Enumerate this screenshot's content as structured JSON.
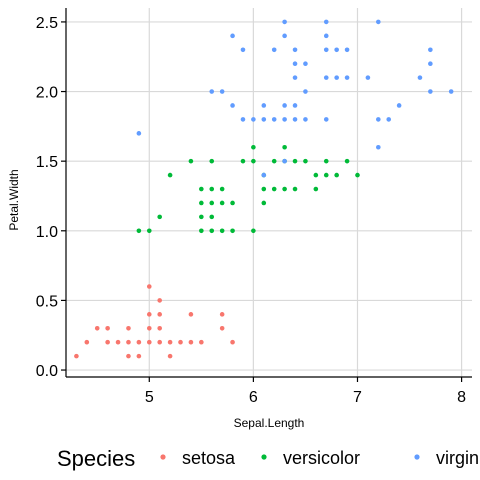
{
  "chart_data": {
    "type": "scatter",
    "xlabel": "Sepal.Length",
    "ylabel": "Petal.Width",
    "xlim": [
      4.2,
      8.1
    ],
    "ylim": [
      -0.05,
      2.6
    ],
    "x_ticks": [
      5,
      6,
      7,
      8
    ],
    "y_ticks": [
      0.0,
      0.5,
      1.0,
      1.5,
      2.0,
      2.5
    ],
    "x_tick_labels": [
      "5",
      "6",
      "7",
      "8"
    ],
    "y_tick_labels": [
      "0.0",
      "0.5",
      "1.0",
      "1.5",
      "2.0",
      "2.5"
    ],
    "grid": true,
    "legend": {
      "title": "Species",
      "position": "bottom"
    },
    "series": [
      {
        "name": "setosa",
        "color": "#F8766D",
        "points": [
          [
            4.3,
            0.1
          ],
          [
            4.4,
            0.2
          ],
          [
            4.5,
            0.3
          ],
          [
            4.6,
            0.2
          ],
          [
            4.6,
            0.3
          ],
          [
            4.7,
            0.2
          ],
          [
            4.8,
            0.1
          ],
          [
            4.8,
            0.2
          ],
          [
            4.8,
            0.3
          ],
          [
            4.9,
            0.1
          ],
          [
            4.9,
            0.2
          ],
          [
            5.0,
            0.2
          ],
          [
            5.0,
            0.3
          ],
          [
            5.0,
            0.4
          ],
          [
            5.0,
            0.6
          ],
          [
            5.1,
            0.2
          ],
          [
            5.1,
            0.3
          ],
          [
            5.1,
            0.4
          ],
          [
            5.1,
            0.5
          ],
          [
            5.2,
            0.1
          ],
          [
            5.2,
            0.2
          ],
          [
            5.3,
            0.2
          ],
          [
            5.4,
            0.2
          ],
          [
            5.4,
            0.4
          ],
          [
            5.5,
            0.2
          ],
          [
            5.7,
            0.3
          ],
          [
            5.7,
            0.4
          ],
          [
            5.8,
            0.2
          ]
        ]
      },
      {
        "name": "versicolor",
        "color": "#00BA38",
        "points": [
          [
            4.9,
            1.0
          ],
          [
            5.0,
            1.0
          ],
          [
            5.1,
            1.1
          ],
          [
            5.2,
            1.4
          ],
          [
            5.4,
            1.5
          ],
          [
            5.5,
            1.0
          ],
          [
            5.5,
            1.1
          ],
          [
            5.5,
            1.2
          ],
          [
            5.5,
            1.3
          ],
          [
            5.6,
            1.0
          ],
          [
            5.6,
            1.1
          ],
          [
            5.6,
            1.2
          ],
          [
            5.6,
            1.3
          ],
          [
            5.6,
            1.5
          ],
          [
            5.7,
            1.0
          ],
          [
            5.7,
            1.2
          ],
          [
            5.7,
            1.3
          ],
          [
            5.8,
            1.0
          ],
          [
            5.8,
            1.2
          ],
          [
            5.9,
            1.5
          ],
          [
            6.0,
            1.0
          ],
          [
            6.0,
            1.5
          ],
          [
            6.0,
            1.6
          ],
          [
            6.1,
            1.2
          ],
          [
            6.1,
            1.3
          ],
          [
            6.1,
            1.4
          ],
          [
            6.2,
            1.3
          ],
          [
            6.2,
            1.5
          ],
          [
            6.3,
            1.3
          ],
          [
            6.3,
            1.5
          ],
          [
            6.3,
            1.6
          ],
          [
            6.4,
            1.3
          ],
          [
            6.4,
            1.5
          ],
          [
            6.5,
            1.5
          ],
          [
            6.6,
            1.3
          ],
          [
            6.6,
            1.4
          ],
          [
            6.7,
            1.4
          ],
          [
            6.7,
            1.5
          ],
          [
            6.8,
            1.4
          ],
          [
            6.9,
            1.5
          ],
          [
            7.0,
            1.4
          ]
        ]
      },
      {
        "name": "virginica",
        "color": "#619CFF",
        "points": [
          [
            4.9,
            1.7
          ],
          [
            5.6,
            2.0
          ],
          [
            5.7,
            2.0
          ],
          [
            5.8,
            1.9
          ],
          [
            5.8,
            2.4
          ],
          [
            5.9,
            1.8
          ],
          [
            5.9,
            2.3
          ],
          [
            6.0,
            1.8
          ],
          [
            6.1,
            1.4
          ],
          [
            6.1,
            1.8
          ],
          [
            6.1,
            1.9
          ],
          [
            6.2,
            1.8
          ],
          [
            6.2,
            2.3
          ],
          [
            6.3,
            1.5
          ],
          [
            6.3,
            1.8
          ],
          [
            6.3,
            1.9
          ],
          [
            6.3,
            2.4
          ],
          [
            6.3,
            2.5
          ],
          [
            6.4,
            1.8
          ],
          [
            6.4,
            1.9
          ],
          [
            6.4,
            2.1
          ],
          [
            6.4,
            2.2
          ],
          [
            6.4,
            2.3
          ],
          [
            6.5,
            1.8
          ],
          [
            6.5,
            2.0
          ],
          [
            6.5,
            2.2
          ],
          [
            6.7,
            1.8
          ],
          [
            6.7,
            2.1
          ],
          [
            6.7,
            2.3
          ],
          [
            6.7,
            2.4
          ],
          [
            6.7,
            2.5
          ],
          [
            6.8,
            2.1
          ],
          [
            6.8,
            2.3
          ],
          [
            6.9,
            2.1
          ],
          [
            6.9,
            2.3
          ],
          [
            7.1,
            2.1
          ],
          [
            7.2,
            1.6
          ],
          [
            7.2,
            1.8
          ],
          [
            7.2,
            2.5
          ],
          [
            7.3,
            1.8
          ],
          [
            7.4,
            1.9
          ],
          [
            7.6,
            2.1
          ],
          [
            7.7,
            2.0
          ],
          [
            7.7,
            2.2
          ],
          [
            7.7,
            2.3
          ],
          [
            7.9,
            2.0
          ]
        ]
      }
    ]
  }
}
